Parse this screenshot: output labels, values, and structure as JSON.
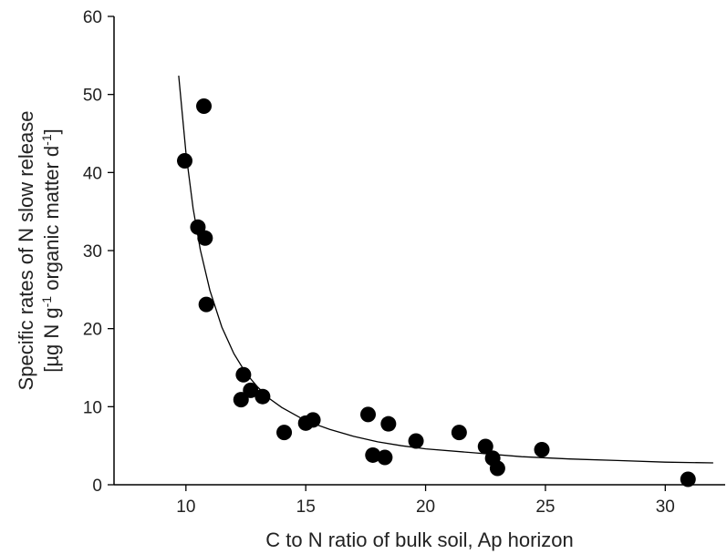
{
  "chart_data": {
    "type": "scatter",
    "title": "",
    "xlabel": "C to N ratio of bulk soil, Ap horizon",
    "ylabel": {
      "line1": "Specific rates of N slow release",
      "line2_parts": [
        "[µg N g",
        "-1",
        " organic matter d",
        "-1",
        "]"
      ]
    },
    "xlim": [
      7,
      32.5
    ],
    "ylim": [
      0,
      60
    ],
    "xticks": [
      10,
      15,
      20,
      25,
      30
    ],
    "yticks": [
      0,
      10,
      20,
      30,
      40,
      50,
      60
    ],
    "grid": false,
    "legend": "none",
    "marker_color": "#000000",
    "series": [
      {
        "x": [
          9.95,
          10.5,
          10.75,
          10.8,
          10.85,
          12.3,
          12.4,
          12.7,
          13.2,
          14.1,
          15.0,
          15.3,
          17.6,
          17.8,
          18.3,
          18.45,
          19.6,
          21.4,
          22.5,
          22.8,
          23.0,
          24.85,
          30.95
        ],
        "y": [
          41.5,
          33.0,
          48.5,
          31.6,
          23.1,
          10.9,
          14.1,
          12.1,
          11.3,
          6.7,
          7.9,
          8.3,
          9.0,
          3.8,
          3.5,
          7.8,
          5.6,
          6.7,
          4.9,
          3.4,
          2.1,
          4.5,
          0.7
        ]
      }
    ],
    "fit_curve": {
      "x": [
        9.7,
        10.0,
        10.3,
        10.6,
        11.0,
        11.5,
        12.0,
        12.5,
        13.0,
        13.5,
        14.0,
        15.0,
        16.0,
        17.0,
        18.0,
        19.0,
        20.0,
        22.0,
        24.0,
        26.0,
        28.0,
        30.0,
        32.0
      ],
      "y": [
        52.4,
        42.6,
        35.4,
        30.1,
        24.9,
        20.2,
        16.8,
        14.3,
        12.5,
        11.0,
        9.9,
        8.2,
        7.1,
        6.2,
        5.5,
        5.0,
        4.6,
        4.1,
        3.6,
        3.3,
        3.1,
        2.9,
        2.8
      ]
    }
  }
}
